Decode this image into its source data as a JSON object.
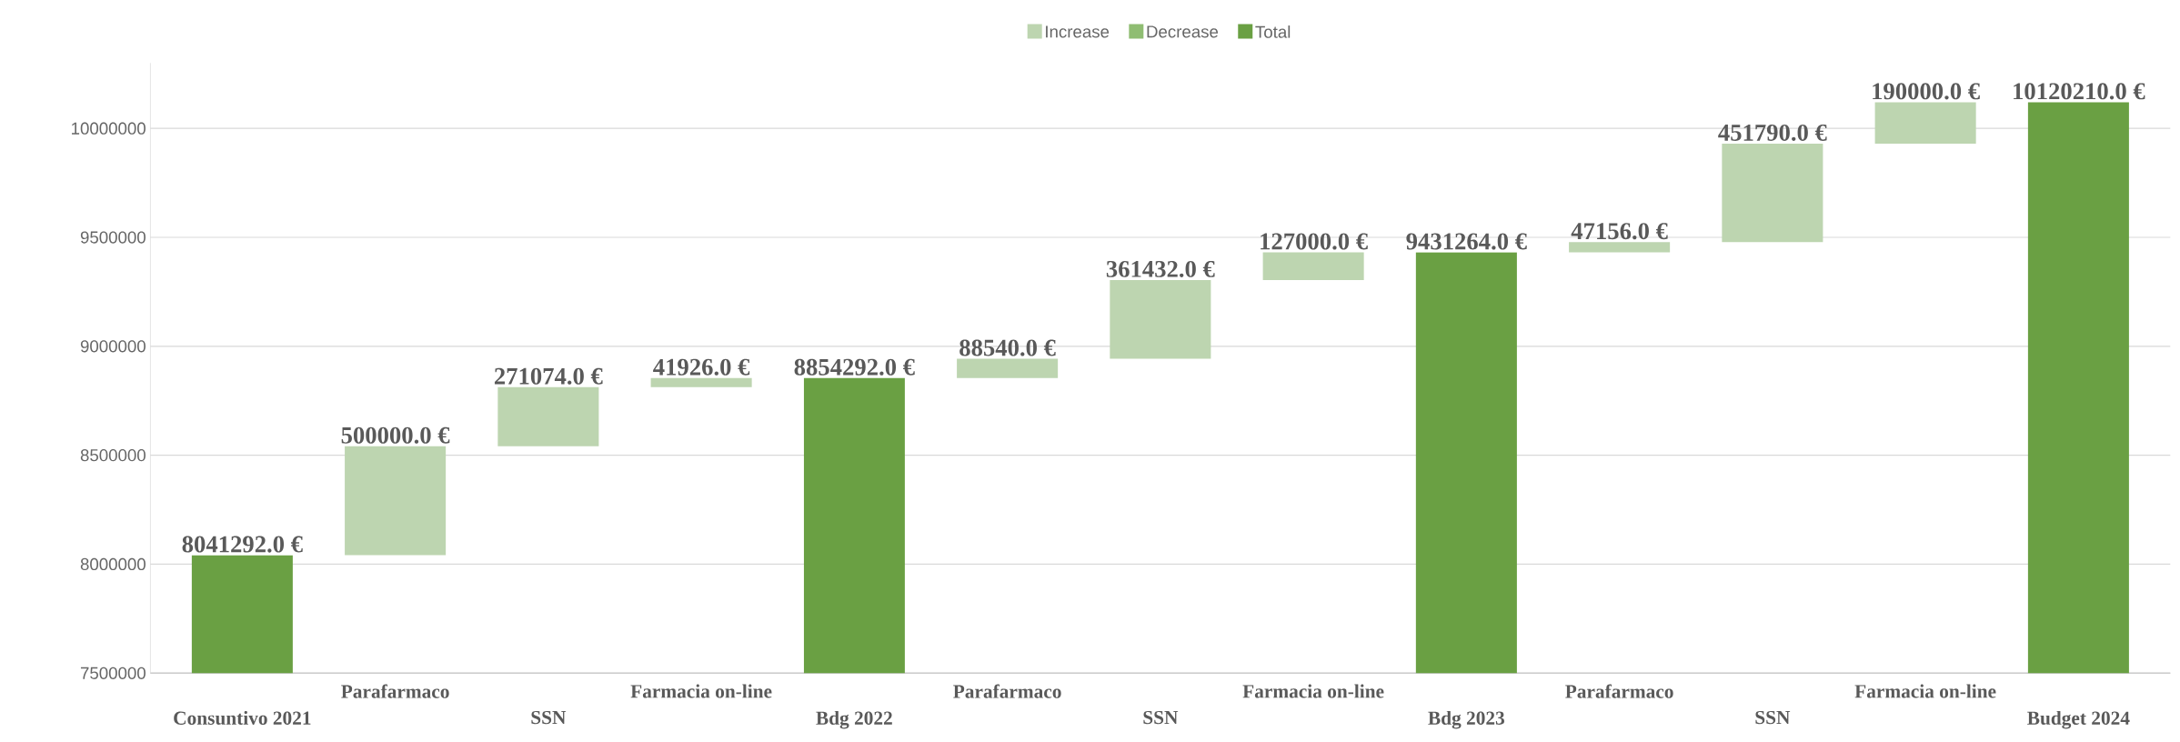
{
  "chart_data": {
    "type": "bar",
    "categories": [
      "Consuntivo 2021",
      "Parafarmaco",
      "SSN",
      "Farmacia on-line",
      "Bdg 2022",
      "Parafarmaco",
      "SSN",
      "Farmacia on-line",
      "Bdg 2023",
      "Parafarmaco",
      "SSN",
      "Farmacia on-line",
      "Budget 2024"
    ],
    "series": [
      {
        "name": "Increase",
        "color": "#bdd5b0",
        "values": [
          null,
          500000,
          271074,
          41926,
          null,
          88540,
          361432,
          127000,
          null,
          47156,
          451790,
          190000,
          null
        ],
        "base": [
          null,
          8041292,
          8541292,
          8812366,
          null,
          8854292,
          8942832,
          9304264,
          null,
          9431264,
          9478420,
          9930210,
          null
        ],
        "value_labels": [
          null,
          "500000.0 €",
          "271074.0 €",
          "41926.0 €",
          null,
          "88540.0 €",
          "361432.0 €",
          "127000.0 €",
          null,
          "47156.0 €",
          "451790.0 €",
          "190000.0 €",
          null
        ]
      },
      {
        "name": "Decrease",
        "color": "#8fbd72",
        "values": [
          null,
          null,
          null,
          null,
          null,
          null,
          null,
          null,
          null,
          null,
          null,
          null,
          null
        ]
      },
      {
        "name": "Total",
        "color": "#6aa043",
        "values": [
          8041292,
          null,
          null,
          null,
          8854292,
          null,
          null,
          null,
          9431264,
          null,
          null,
          null,
          10120210
        ],
        "base": [
          0,
          null,
          null,
          null,
          0,
          null,
          null,
          null,
          0,
          null,
          null,
          null,
          0
        ],
        "value_labels": [
          "8041292.0 €",
          null,
          null,
          null,
          "8854292.0 €",
          null,
          null,
          null,
          "9431264.0 €",
          null,
          null,
          null,
          "10120210.0 €"
        ]
      }
    ],
    "ylim": [
      7500000,
      10300000
    ],
    "yticks": [
      7500000,
      8000000,
      8500000,
      9000000,
      9500000,
      10000000
    ],
    "grid": "y",
    "legend": "top"
  }
}
